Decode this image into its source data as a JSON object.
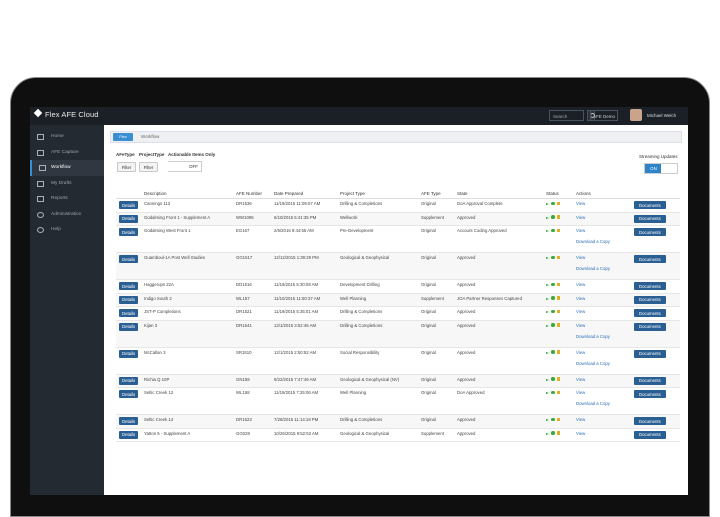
{
  "app": {
    "title": "Flex AFE Cloud",
    "search_placeholder": "Search",
    "company": "AFE Demo",
    "user": "Michael Welch"
  },
  "sidebar": {
    "items": [
      {
        "label": "Home",
        "icon": "home-icon"
      },
      {
        "label": "AFE Capture",
        "icon": "capture-icon"
      },
      {
        "label": "Workflow",
        "icon": "workflow-icon"
      },
      {
        "label": "My Drafts",
        "icon": "drafts-icon"
      },
      {
        "label": "Reports",
        "icon": "reports-icon"
      },
      {
        "label": "Administration",
        "icon": "gear-icon"
      },
      {
        "label": "Help",
        "icon": "help-icon"
      }
    ]
  },
  "breadcrumb": {
    "home": "Flex",
    "current": "Workflow"
  },
  "filters": {
    "afetype_label": "AFeType",
    "projecttype_label": "ProjectType",
    "actionable_label": "Actionable Items Only",
    "filter_btn": "Filter",
    "off": "OFF",
    "streaming_label": "Streaming Updates",
    "on": "ON"
  },
  "table": {
    "headers": [
      "Description",
      "AFE Number",
      "Date Prepared",
      "Project Type",
      "AFE Type",
      "State",
      "Status",
      "Actions"
    ],
    "details_label": "Details",
    "documents_label": "Documents",
    "view_label": "View",
    "download_label": "Download a Copy",
    "rows": [
      {
        "desc": "Cannings 113",
        "afe": "DR1536",
        "date": "11/19/2015 11:09:57 AM",
        "proj": "Drilling & Completions",
        "type": "Original",
        "state": "DoA Approval Complete"
      },
      {
        "desc": "Godalming Front 1 - Supplement A",
        "afe": "WW1095",
        "date": "6/10/2015 5:41:35 PM",
        "proj": "Wellwork",
        "type": "Supplement",
        "state": "Approved"
      },
      {
        "desc": "Godalming West Front 1",
        "afe": "EG167",
        "date": "2/5/2016 9:44:55 AM",
        "proj": "Pre-Development",
        "type": "Original",
        "state": "Account Coding Approved"
      },
      {
        "desc": "Guamboul-1A Post Well Studies",
        "afe": "GG1517",
        "date": "12/12/2015 1:39:29 PM",
        "proj": "Geological & Geophysical",
        "type": "Original",
        "state": "Approved"
      },
      {
        "desc": "Haggerups 22A",
        "afe": "DD1516",
        "date": "11/19/2015 5:30:08 AM",
        "proj": "Development Drilling",
        "type": "Original",
        "state": "Approved"
      },
      {
        "desc": "Indigo South 2",
        "afe": "WL157",
        "date": "11/10/2015 11:50:37 AM",
        "proj": "Well Planning",
        "type": "Supplement",
        "state": "JOA Partner Responses Captured"
      },
      {
        "desc": "JST-P Completions",
        "afe": "DR1521",
        "date": "11/19/2015 5:35:01 AM",
        "proj": "Drilling & Completions",
        "type": "Original",
        "state": "Approved"
      },
      {
        "desc": "Kijan 3",
        "afe": "DR1541",
        "date": "12/1/2015 3:52:45 AM",
        "proj": "Drilling & Completions",
        "type": "Original",
        "state": "Approved"
      },
      {
        "desc": "McCallan 3",
        "afe": "SR1510",
        "date": "12/1/2015 2:50:52 AM",
        "proj": "Social Responsibility",
        "type": "Original",
        "state": "Approved"
      },
      {
        "desc": "Richia Q 10P",
        "afe": "GN159",
        "date": "9/22/2015 7:47:49 AM",
        "proj": "Geological & Geophysical (NV)",
        "type": "Original",
        "state": "Approved"
      },
      {
        "desc": "Seltic Creek 12",
        "afe": "WL158",
        "date": "11/19/2015 7:25:06 AM",
        "proj": "Well Planning",
        "type": "Original",
        "state": "DoA Approved"
      },
      {
        "desc": "Seltic Creek 14",
        "afe": "DR1523",
        "date": "7/28/2015 11:14:18 PM",
        "proj": "Drilling & Completions",
        "type": "Original",
        "state": "Approved"
      },
      {
        "desc": "Yatton 5 - Supplement A",
        "afe": "GG028",
        "date": "10/26/2015 9:52:52 AM",
        "proj": "Geological & Geophysical",
        "type": "Supplement",
        "state": "Approved"
      }
    ]
  },
  "colors": {
    "accent": "#2d84c9",
    "button": "#2a5f94",
    "sidebar": "#242a31",
    "topbar": "#1b2026"
  }
}
